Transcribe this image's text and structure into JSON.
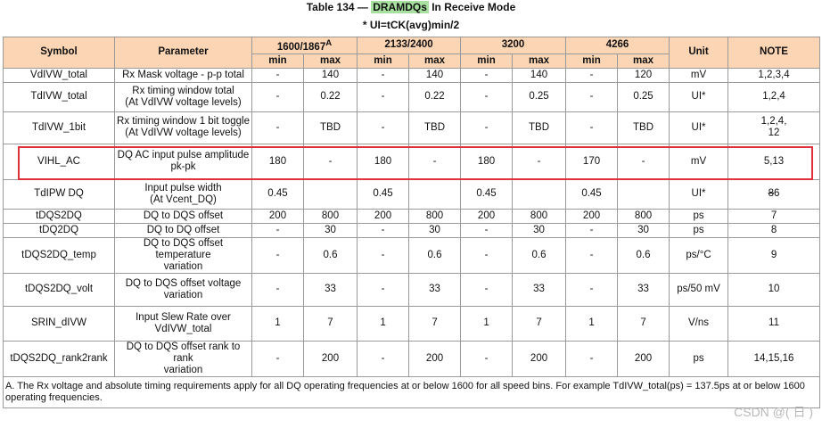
{
  "title": {
    "before": "Table 134 — ",
    "highlight": "DRAMDQs",
    "after": " In Receive Mode"
  },
  "subtitle": "* UI=tCK(avg)min/2",
  "table": {
    "header": {
      "symbol": "Symbol",
      "parameter": "Parameter",
      "groups": [
        {
          "text": "1600/1867",
          "sup": "A"
        },
        {
          "text": "2133/2400"
        },
        {
          "text": "3200"
        },
        {
          "text": "4266"
        }
      ],
      "sub": [
        "min",
        "max",
        "min",
        "max",
        "min",
        "max",
        "min",
        "max"
      ],
      "unit": "Unit",
      "note": "NOTE"
    },
    "rows": [
      [
        "VdIVW_total",
        "Rx Mask voltage - p-p total",
        "-",
        "140",
        "-",
        "140",
        "-",
        "140",
        "-",
        "120",
        "mV",
        "1,2,3,4"
      ],
      [
        "TdIVW_total",
        "Rx timing window total\n(At VdIVW voltage levels)",
        "-",
        "0.22",
        "-",
        "0.22",
        "-",
        "0.25",
        "-",
        "0.25",
        "UI*",
        "1,2,4"
      ],
      [
        "TdIVW_1bit",
        "Rx timing window 1 bit toggle\n(At VdIVW voltage levels)",
        "-",
        "TBD",
        "-",
        "TBD",
        "-",
        "TBD",
        "-",
        "TBD",
        "UI*",
        "1,2,4,\n12"
      ],
      [
        "VIHL_AC",
        "DQ AC input pulse amplitude\npk-pk",
        "180",
        "-",
        "180",
        "-",
        "180",
        "-",
        "170",
        "-",
        "mV",
        "5,13"
      ],
      [
        "TdIPW DQ",
        "Input pulse width\n(At Vcent_DQ)",
        "0.45",
        "",
        "0.45",
        "",
        "0.45",
        "",
        "0.45",
        "",
        "UI*",
        {
          "struck": "8",
          "text": "6"
        }
      ],
      [
        "tDQS2DQ",
        "DQ to DQS offset",
        "200",
        "800",
        "200",
        "800",
        "200",
        "800",
        "200",
        "800",
        "ps",
        "7"
      ],
      [
        "tDQ2DQ",
        "DQ to DQ offset",
        "-",
        "30",
        "-",
        "30",
        "-",
        "30",
        "-",
        "30",
        "ps",
        "8"
      ],
      [
        "tDQS2DQ_temp",
        "DQ to DQS offset temperature\nvariation",
        "-",
        "0.6",
        "-",
        "0.6",
        "-",
        "0.6",
        "-",
        "0.6",
        "ps/°C",
        "9"
      ],
      [
        "tDQS2DQ_volt",
        "DQ to DQS offset voltage\nvariation",
        "-",
        "33",
        "-",
        "33",
        "-",
        "33",
        "-",
        "33",
        "ps/50 mV",
        "10"
      ],
      [
        "SRIN_dIVW",
        "Input Slew Rate over\nVdIVW_total",
        "1",
        "7",
        "1",
        "7",
        "1",
        "7",
        "1",
        "7",
        "V/ns",
        "11"
      ],
      [
        "tDQS2DQ_rank2rank",
        "DQ to DQS offset rank to rank\nvariation",
        "-",
        "200",
        "-",
        "200",
        "-",
        "200",
        "-",
        "200",
        "ps",
        "14,15,16"
      ]
    ],
    "highlighted_row": 3,
    "footnote": "A. The Rx voltage and absolute timing requirements apply for all DQ operating frequencies at or below 1600 for all speed bins. For example TdIVW_total(ps) = 137.5ps at or below 1600 operating frequencies."
  },
  "watermark": "CSDN @(  日 )"
}
